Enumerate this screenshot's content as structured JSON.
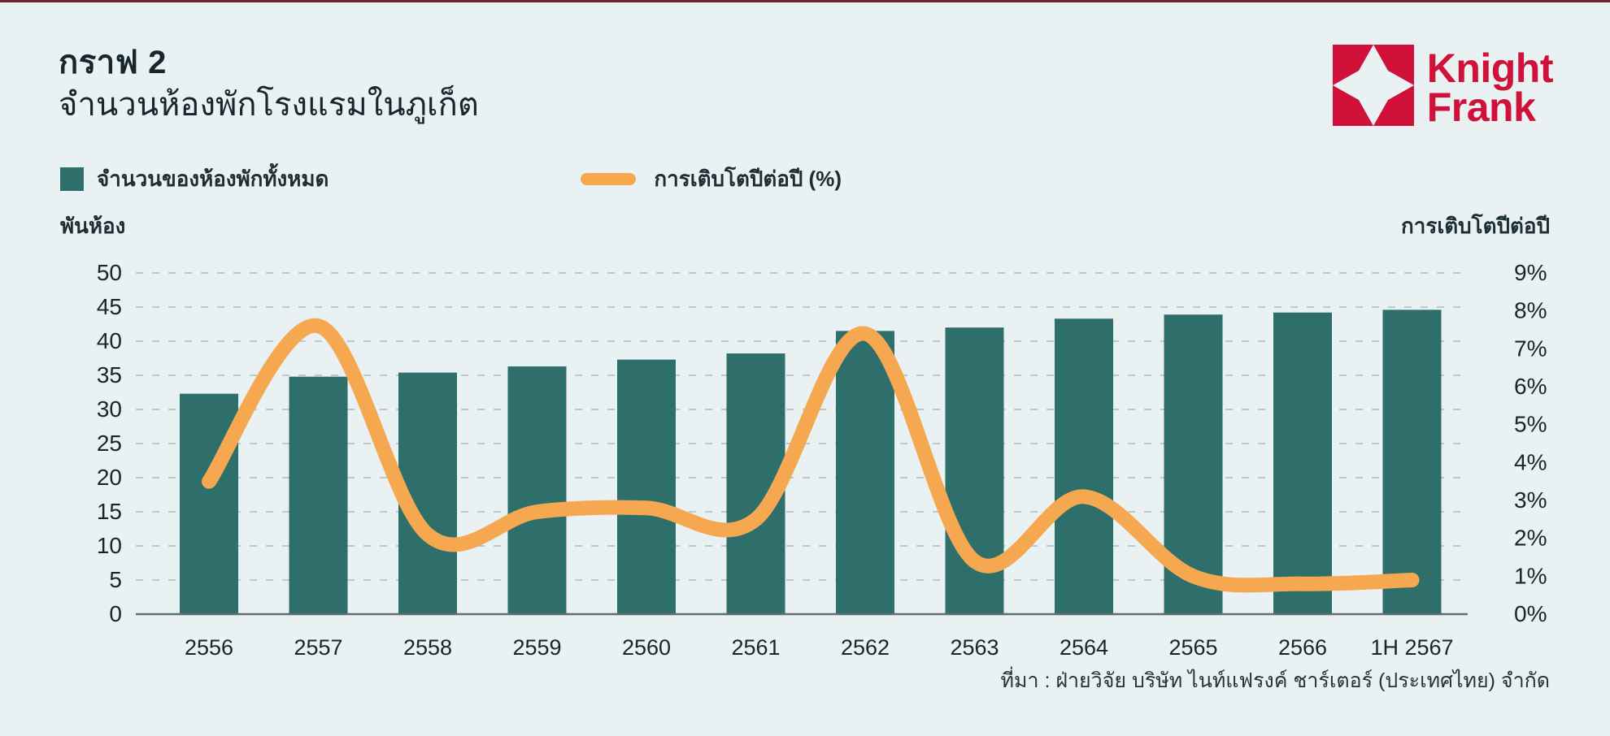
{
  "page": {
    "title": "กราฟ 2",
    "subtitle": "จำนวนห้องพักโรงแรมในภูเก็ต",
    "source": "ที่มา : ฝ่ายวิจัย บริษัท ไนท์แฟรงค์ ชาร์เตอร์ (ประเทศไทย) จำกัด"
  },
  "logo": {
    "line1": "Knight",
    "line2": "Frank",
    "color": "#d0123b"
  },
  "legend": {
    "bars_label": "จำนวนของห้องพักทั้งหมด",
    "line_label": "การเติบโตปีต่อปี (%)"
  },
  "colors": {
    "background": "#e9f1f2",
    "bar": "#2e6f6b",
    "line": "#f5a850",
    "grid": "#bcc9cc",
    "axis_line": "#5f6e72",
    "text": "#16262e",
    "brand_red": "#d0123b"
  },
  "chart_data": {
    "type": "bar",
    "note_type": "combo bar + smooth line, dual axis",
    "categories": [
      "2556",
      "2557",
      "2558",
      "2559",
      "2560",
      "2561",
      "2562",
      "2563",
      "2564",
      "2565",
      "2566",
      "1H 2567"
    ],
    "series": [
      {
        "name": "จำนวนของห้องพักทั้งหมด",
        "type": "bar",
        "axis": "left",
        "color": "#2e6f6b",
        "values": [
          32.3,
          34.8,
          35.4,
          36.3,
          37.3,
          38.2,
          41.5,
          42.0,
          43.3,
          43.9,
          44.2,
          44.6
        ]
      },
      {
        "name": "การเติบโตปีต่อปี (%)",
        "type": "line",
        "axis": "right",
        "color": "#f5a850",
        "values": [
          3.5,
          7.6,
          2.1,
          2.7,
          2.8,
          2.5,
          7.4,
          1.4,
          3.1,
          1.0,
          0.8,
          0.9
        ]
      }
    ],
    "left_axis": {
      "title": "พันห้อง",
      "min": 0,
      "max": 50,
      "step": 5,
      "ticks": [
        "0",
        "5",
        "10",
        "15",
        "20",
        "25",
        "30",
        "35",
        "40",
        "45",
        "50"
      ]
    },
    "right_axis": {
      "title": "การเติบโตปีต่อปี",
      "min": 0,
      "max": 9,
      "step": 1,
      "ticks": [
        "0%",
        "1%",
        "2%",
        "3%",
        "4%",
        "5%",
        "6%",
        "7%",
        "8%",
        "9%"
      ]
    },
    "grid": "horizontal dashed",
    "legend_position": "top-left"
  }
}
